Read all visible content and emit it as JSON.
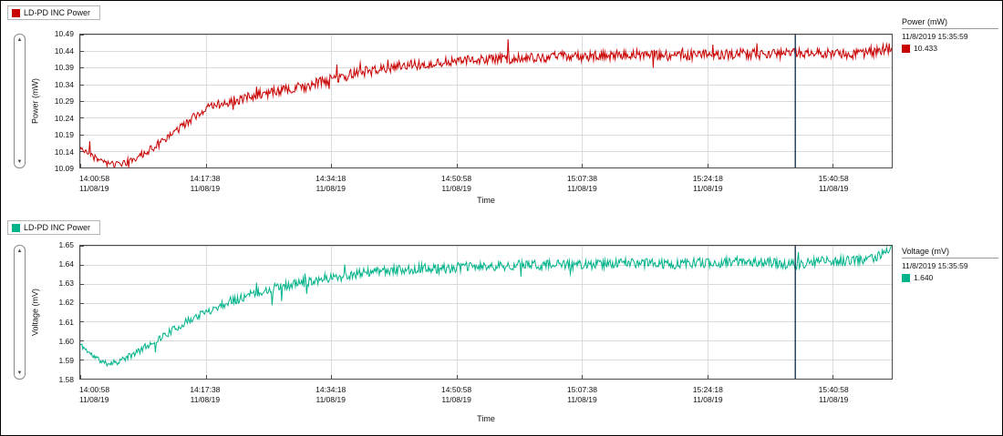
{
  "window": {
    "background": "#ffffff",
    "border_color": "#000000"
  },
  "ui": {
    "scrollbar": {
      "up_glyph": "▲",
      "down_glyph": "▼"
    }
  },
  "chart_data": [
    {
      "type": "line",
      "legend_label": "LD-PD INC Power",
      "series_name": "LD-PD INC Power",
      "color": "#c80000",
      "cursor_color": "#1b3a5c",
      "grid_color": "#dadada",
      "frame_color": "#4a4a4a",
      "xlabel": "Time",
      "ylabel": "Power (mW)",
      "y_min": 10.09,
      "y_max": 10.49,
      "y_ticks": [
        {
          "label": "10.49",
          "value": 10.49
        },
        {
          "label": "10.44",
          "value": 10.44
        },
        {
          "label": "10.39",
          "value": 10.39
        },
        {
          "label": "10.34",
          "value": 10.34
        },
        {
          "label": "10.29",
          "value": 10.29
        },
        {
          "label": "10.24",
          "value": 10.24
        },
        {
          "label": "10.19",
          "value": 10.19
        },
        {
          "label": "10.14",
          "value": 10.14
        },
        {
          "label": "10.09",
          "value": 10.09
        }
      ],
      "x_domain_seconds": 6470,
      "x_ticks": [
        {
          "time": "14:00:58",
          "date": "11/08/19",
          "seconds": 0
        },
        {
          "time": "14:17:38",
          "date": "11/08/19",
          "seconds": 1000
        },
        {
          "time": "14:34:18",
          "date": "11/08/19",
          "seconds": 2000
        },
        {
          "time": "14:50:58",
          "date": "11/08/19",
          "seconds": 3000
        },
        {
          "time": "15:07:38",
          "date": "11/08/19",
          "seconds": 4000
        },
        {
          "time": "15:24:18",
          "date": "11/08/19",
          "seconds": 5000
        },
        {
          "time": "15:40:58",
          "date": "11/08/19",
          "seconds": 6000
        }
      ],
      "cursor_seconds": 5701,
      "right_legend": {
        "title": "Power (mW)",
        "timestamp": "11/8/2019 15:35:59",
        "value": "10.433"
      },
      "trend": [
        [
          0,
          10.148
        ],
        [
          100,
          10.125
        ],
        [
          200,
          10.103
        ],
        [
          300,
          10.097
        ],
        [
          400,
          10.11
        ],
        [
          500,
          10.13
        ],
        [
          600,
          10.155
        ],
        [
          700,
          10.18
        ],
        [
          800,
          10.21
        ],
        [
          900,
          10.24
        ],
        [
          1000,
          10.265
        ],
        [
          1100,
          10.28
        ],
        [
          1200,
          10.29
        ],
        [
          1350,
          10.302
        ],
        [
          1500,
          10.315
        ],
        [
          1650,
          10.325
        ],
        [
          1800,
          10.335
        ],
        [
          1950,
          10.35
        ],
        [
          2100,
          10.365
        ],
        [
          2300,
          10.38
        ],
        [
          2500,
          10.392
        ],
        [
          2700,
          10.4
        ],
        [
          2900,
          10.408
        ],
        [
          3100,
          10.412
        ],
        [
          3300,
          10.415
        ],
        [
          3500,
          10.42
        ],
        [
          3700,
          10.422
        ],
        [
          3900,
          10.425
        ],
        [
          4100,
          10.425
        ],
        [
          4300,
          10.428
        ],
        [
          4500,
          10.43
        ],
        [
          4700,
          10.426
        ],
        [
          4900,
          10.43
        ],
        [
          5100,
          10.43
        ],
        [
          5300,
          10.433
        ],
        [
          5500,
          10.43
        ],
        [
          5700,
          10.433
        ],
        [
          5900,
          10.434
        ],
        [
          6100,
          10.43
        ],
        [
          6300,
          10.436
        ],
        [
          6470,
          10.45
        ]
      ],
      "noise_band": 0.016,
      "spike_band": 0.05,
      "seed": 3
    },
    {
      "type": "line",
      "legend_label": "LD-PD INC Power",
      "series_name": "LD-PD INC Power",
      "color": "#00b38a",
      "cursor_color": "#1b3a5c",
      "grid_color": "#dadada",
      "frame_color": "#4a4a4a",
      "xlabel": "Time",
      "ylabel": "Voltage (mV)",
      "y_min": 1.58,
      "y_max": 1.65,
      "y_ticks": [
        {
          "label": "1.65",
          "value": 1.65
        },
        {
          "label": "1.64",
          "value": 1.64
        },
        {
          "label": "1.63",
          "value": 1.63
        },
        {
          "label": "1.62",
          "value": 1.62
        },
        {
          "label": "1.61",
          "value": 1.61
        },
        {
          "label": "1.60",
          "value": 1.6
        },
        {
          "label": "1.59",
          "value": 1.59
        },
        {
          "label": "1.58",
          "value": 1.58
        }
      ],
      "x_domain_seconds": 6470,
      "x_ticks": [
        {
          "time": "14:00:58",
          "date": "11/08/19",
          "seconds": 0
        },
        {
          "time": "14:17:38",
          "date": "11/08/19",
          "seconds": 1000
        },
        {
          "time": "14:34:18",
          "date": "11/08/19",
          "seconds": 2000
        },
        {
          "time": "14:50:58",
          "date": "11/08/19",
          "seconds": 3000
        },
        {
          "time": "15:07:38",
          "date": "11/08/19",
          "seconds": 4000
        },
        {
          "time": "15:24:18",
          "date": "11/08/19",
          "seconds": 5000
        },
        {
          "time": "15:40:58",
          "date": "11/08/19",
          "seconds": 6000
        }
      ],
      "cursor_seconds": 5701,
      "right_legend": {
        "title": "Voltage (mV)",
        "timestamp": "11/8/2019 15:35:59",
        "value": "1.640"
      },
      "trend": [
        [
          0,
          1.598
        ],
        [
          100,
          1.592
        ],
        [
          200,
          1.588
        ],
        [
          300,
          1.589
        ],
        [
          400,
          1.592
        ],
        [
          500,
          1.596
        ],
        [
          600,
          1.6
        ],
        [
          700,
          1.604
        ],
        [
          800,
          1.608
        ],
        [
          900,
          1.612
        ],
        [
          1000,
          1.615
        ],
        [
          1100,
          1.618
        ],
        [
          1200,
          1.621
        ],
        [
          1350,
          1.624
        ],
        [
          1500,
          1.627
        ],
        [
          1650,
          1.629
        ],
        [
          1800,
          1.631
        ],
        [
          1950,
          1.633
        ],
        [
          2100,
          1.634
        ],
        [
          2300,
          1.636
        ],
        [
          2500,
          1.637
        ],
        [
          2700,
          1.638
        ],
        [
          2900,
          1.638
        ],
        [
          3100,
          1.639
        ],
        [
          3300,
          1.639
        ],
        [
          3500,
          1.64
        ],
        [
          3700,
          1.64
        ],
        [
          3900,
          1.64
        ],
        [
          4100,
          1.64
        ],
        [
          4300,
          1.641
        ],
        [
          4500,
          1.641
        ],
        [
          4700,
          1.64
        ],
        [
          4900,
          1.641
        ],
        [
          5100,
          1.641
        ],
        [
          5300,
          1.642
        ],
        [
          5500,
          1.641
        ],
        [
          5700,
          1.64
        ],
        [
          5900,
          1.642
        ],
        [
          6100,
          1.642
        ],
        [
          6300,
          1.643
        ],
        [
          6470,
          1.648
        ]
      ],
      "noise_band": 0.0026,
      "spike_band": 0.009,
      "seed": 11
    }
  ]
}
